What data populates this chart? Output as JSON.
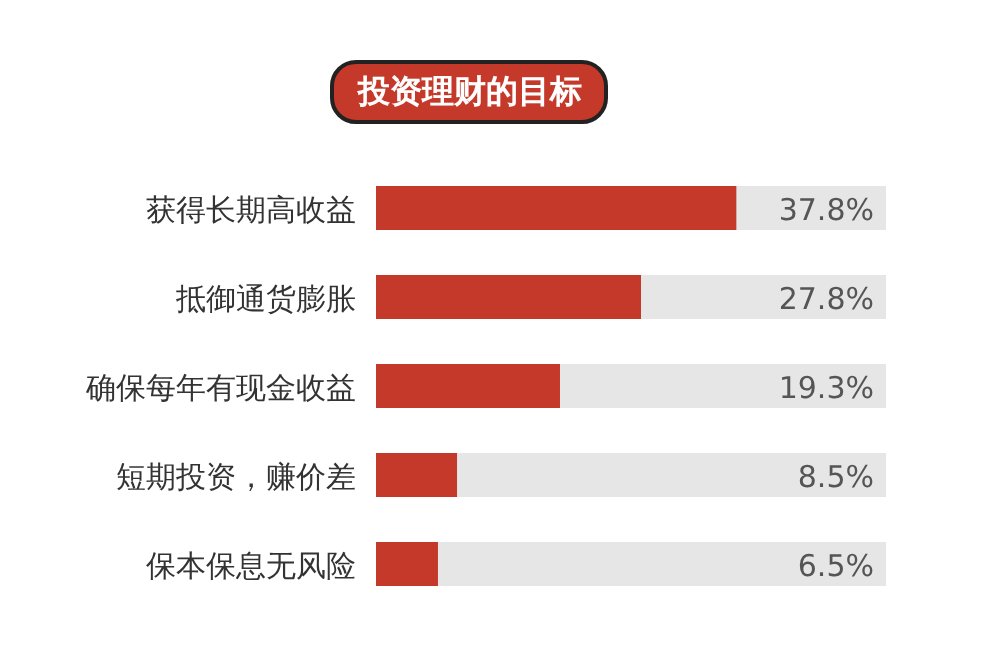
{
  "chart_data": {
    "type": "bar",
    "orientation": "horizontal",
    "title": "投资理财的目标",
    "categories": [
      "获得长期高收益",
      "抵御通货膨胀",
      "确保每年有现金收益",
      "短期投资，赚价差",
      "保本保息无风险"
    ],
    "values": [
      37.8,
      27.8,
      19.3,
      8.5,
      6.5
    ],
    "value_labels": [
      "37.8%",
      "27.8%",
      "19.3%",
      "8.5%",
      "6.5%"
    ],
    "color": "#c4392a",
    "xlim": [
      0,
      53.5
    ],
    "tick_labels": "y"
  }
}
